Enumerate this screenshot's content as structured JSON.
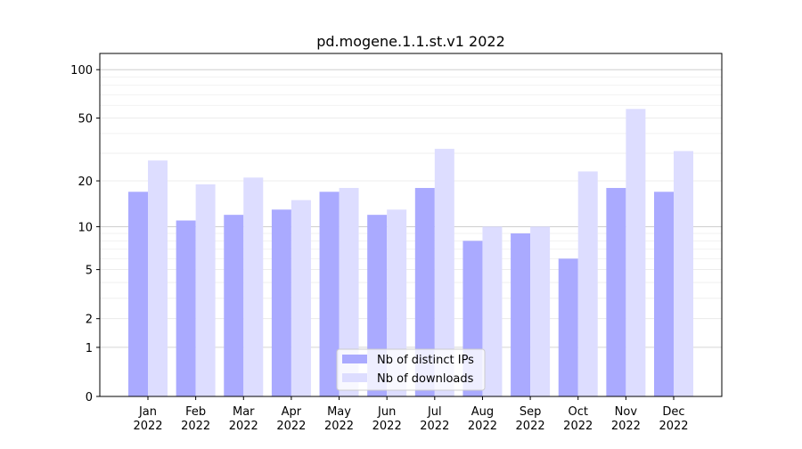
{
  "chart_data": {
    "type": "bar",
    "title": "pd.mogene.1.1.st.v1 2022",
    "xlabel": "",
    "ylabel": "",
    "y_scale": "log10(1+y)",
    "ylim": [
      0,
      126
    ],
    "y_ticks": [
      0,
      1,
      2,
      5,
      10,
      20,
      50,
      100
    ],
    "grid": true,
    "legend_position": "bottom-center",
    "categories": [
      "Jan\n2022",
      "Feb\n2022",
      "Mar\n2022",
      "Apr\n2022",
      "May\n2022",
      "Jun\n2022",
      "Jul\n2022",
      "Aug\n2022",
      "Sep\n2022",
      "Oct\n2022",
      "Nov\n2022",
      "Dec\n2022"
    ],
    "series": [
      {
        "name": "Nb of distinct IPs",
        "color": "#aaaaff",
        "values": [
          17,
          11,
          12,
          13,
          17,
          12,
          18,
          8,
          9,
          6,
          18,
          17
        ]
      },
      {
        "name": "Nb of downloads",
        "color": "#ddddff",
        "values": [
          27,
          19,
          21,
          15,
          18,
          13,
          32,
          10,
          10,
          23,
          57,
          31
        ]
      }
    ]
  }
}
